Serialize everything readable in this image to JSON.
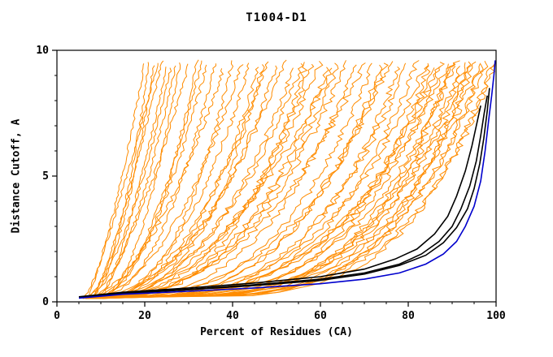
{
  "page": {
    "background": "#FFFFFF"
  },
  "chart_data": {
    "type": "line",
    "title": "T1004-D1",
    "xlabel": "Percent of Residues (CA)",
    "ylabel": "Distance Cutoff, A",
    "xlim": [
      0,
      100
    ],
    "ylim": [
      0,
      10
    ],
    "x_major_ticks": [
      0,
      20,
      40,
      60,
      80,
      100
    ],
    "x_minor_ticks": [
      5,
      10,
      15,
      25,
      30,
      35,
      45,
      50,
      55,
      65,
      70,
      75,
      85,
      90,
      95
    ],
    "y_major_ticks": [
      0,
      5,
      10
    ],
    "y_minor_ticks": [
      1,
      2,
      3,
      4,
      6,
      7,
      8,
      9
    ],
    "grid": false,
    "legend": "none",
    "colors": {
      "predictions": "#FF8C00",
      "reference_models": "#000000",
      "best_model": "#0000CD",
      "axes": "#000000"
    },
    "series": {
      "predictions": {
        "color_key": "predictions",
        "description": "ensemble of server prediction curves; each curve modeled as x(y) = x_start + (x_top - x_start) * ((y - y_start)/(y_top - y_start))^q",
        "y_start": 0.15,
        "curve_format": [
          "x_start",
          "x_top",
          "q",
          "y_top",
          "seed"
        ],
        "curves": [
          [
            6,
            20,
            0.7,
            9.5,
            1
          ],
          [
            7,
            22,
            0.55,
            9.4,
            2
          ],
          [
            8,
            24,
            0.8,
            9.6,
            3
          ],
          [
            6,
            26,
            0.6,
            9.3,
            4
          ],
          [
            9,
            28,
            0.5,
            9.5,
            5
          ],
          [
            7,
            30,
            0.65,
            9.45,
            6
          ],
          [
            8,
            32,
            0.45,
            9.6,
            7
          ],
          [
            10,
            25,
            0.75,
            9.35,
            8
          ],
          [
            6,
            21,
            0.5,
            9.55,
            9
          ],
          [
            8,
            27,
            0.6,
            9.4,
            10
          ],
          [
            7,
            23,
            0.9,
            9.5,
            11
          ],
          [
            9,
            33,
            0.55,
            9.6,
            12
          ],
          [
            7,
            34,
            0.5,
            9.4,
            13
          ],
          [
            8,
            36,
            0.45,
            9.5,
            14
          ],
          [
            6,
            38,
            0.55,
            9.3,
            15
          ],
          [
            9,
            40,
            0.4,
            9.6,
            16
          ],
          [
            7,
            42,
            0.5,
            9.45,
            17
          ],
          [
            8,
            44,
            0.45,
            9.5,
            18
          ],
          [
            6,
            46,
            0.38,
            9.35,
            19
          ],
          [
            10,
            48,
            0.5,
            9.55,
            20
          ],
          [
            7,
            50,
            0.42,
            9.4,
            21
          ],
          [
            8,
            52,
            0.48,
            9.6,
            22
          ],
          [
            6,
            54,
            0.4,
            9.3,
            23
          ],
          [
            9,
            56,
            0.45,
            9.5,
            24
          ],
          [
            7,
            58,
            0.38,
            9.45,
            25
          ],
          [
            8,
            60,
            0.42,
            9.55,
            26
          ],
          [
            6,
            62,
            0.36,
            9.35,
            27
          ],
          [
            10,
            64,
            0.4,
            9.5,
            28
          ],
          [
            7,
            66,
            0.38,
            9.6,
            29
          ],
          [
            8,
            68,
            0.35,
            9.4,
            30
          ],
          [
            6,
            70,
            0.4,
            9.5,
            31
          ],
          [
            9,
            63,
            0.5,
            9.3,
            32
          ],
          [
            7,
            57,
            0.33,
            9.55,
            33
          ],
          [
            8,
            47,
            0.36,
            9.45,
            34
          ],
          [
            7,
            72,
            0.32,
            9.5,
            35
          ],
          [
            8,
            74,
            0.3,
            9.4,
            36
          ],
          [
            6,
            76,
            0.33,
            9.55,
            37
          ],
          [
            9,
            78,
            0.28,
            9.35,
            38
          ],
          [
            7,
            80,
            0.3,
            9.5,
            39
          ],
          [
            8,
            82,
            0.27,
            9.6,
            40
          ],
          [
            6,
            84,
            0.3,
            9.4,
            41
          ],
          [
            10,
            85,
            0.25,
            9.5,
            42
          ],
          [
            7,
            86,
            0.28,
            9.3,
            43
          ],
          [
            8,
            88,
            0.26,
            9.55,
            44
          ],
          [
            6,
            89,
            0.3,
            9.45,
            45
          ],
          [
            9,
            90,
            0.24,
            9.5,
            46
          ],
          [
            7,
            91,
            0.27,
            9.6,
            47
          ],
          [
            8,
            92,
            0.25,
            9.35,
            48
          ],
          [
            6,
            93,
            0.23,
            9.5,
            49
          ],
          [
            10,
            94,
            0.26,
            9.4,
            50
          ],
          [
            7,
            95,
            0.22,
            9.55,
            51
          ],
          [
            8,
            96,
            0.24,
            9.45,
            52
          ],
          [
            6,
            97,
            0.21,
            9.5,
            53
          ],
          [
            9,
            98,
            0.23,
            9.6,
            54
          ],
          [
            7,
            99,
            0.2,
            9.4,
            55
          ],
          [
            8,
            100,
            0.22,
            9.5,
            56
          ],
          [
            6,
            87,
            0.29,
            9.35,
            57
          ],
          [
            9,
            94,
            0.2,
            9.55,
            58
          ],
          [
            7,
            90,
            0.22,
            9.45,
            59
          ],
          [
            8,
            75,
            0.31,
            9.5,
            60
          ]
        ]
      },
      "reference_models": {
        "color_key": "reference_models",
        "curves_points": [
          [
            [
              5,
              0.18
            ],
            [
              15,
              0.35
            ],
            [
              30,
              0.5
            ],
            [
              45,
              0.68
            ],
            [
              60,
              0.9
            ],
            [
              70,
              1.15
            ],
            [
              78,
              1.5
            ],
            [
              83,
              1.9
            ],
            [
              87,
              2.4
            ],
            [
              90,
              3.0
            ],
            [
              92,
              3.7
            ],
            [
              94,
              4.6
            ],
            [
              95.5,
              5.6
            ],
            [
              96.5,
              6.6
            ],
            [
              97.3,
              7.5
            ],
            [
              98,
              8.2
            ]
          ],
          [
            [
              5,
              0.2
            ],
            [
              15,
              0.38
            ],
            [
              30,
              0.55
            ],
            [
              45,
              0.75
            ],
            [
              60,
              1.0
            ],
            [
              70,
              1.3
            ],
            [
              77,
              1.7
            ],
            [
              82,
              2.1
            ],
            [
              86,
              2.7
            ],
            [
              89,
              3.4
            ],
            [
              91,
              4.2
            ],
            [
              93,
              5.2
            ],
            [
              94.5,
              6.2
            ],
            [
              95.5,
              7.0
            ],
            [
              96.5,
              7.8
            ]
          ],
          [
            [
              5,
              0.17
            ],
            [
              15,
              0.33
            ],
            [
              30,
              0.48
            ],
            [
              45,
              0.65
            ],
            [
              60,
              0.85
            ],
            [
              70,
              1.1
            ],
            [
              78,
              1.45
            ],
            [
              84,
              1.85
            ],
            [
              88,
              2.35
            ],
            [
              91,
              2.95
            ],
            [
              93.5,
              3.7
            ],
            [
              95,
              4.5
            ],
            [
              96.3,
              5.5
            ],
            [
              97.2,
              6.5
            ],
            [
              98,
              7.6
            ],
            [
              98.5,
              8.5
            ]
          ]
        ]
      },
      "best_model": {
        "color_key": "best_model",
        "points": [
          [
            5,
            0.15
          ],
          [
            15,
            0.3
          ],
          [
            30,
            0.42
          ],
          [
            45,
            0.55
          ],
          [
            60,
            0.72
          ],
          [
            70,
            0.9
          ],
          [
            78,
            1.15
          ],
          [
            84,
            1.5
          ],
          [
            88,
            1.9
          ],
          [
            91,
            2.4
          ],
          [
            93,
            3.0
          ],
          [
            95,
            3.8
          ],
          [
            96.5,
            4.8
          ],
          [
            97.5,
            6.0
          ],
          [
            98.3,
            7.2
          ],
          [
            99,
            8.2
          ],
          [
            99.5,
            9.0
          ],
          [
            99.8,
            9.6
          ]
        ]
      }
    }
  }
}
